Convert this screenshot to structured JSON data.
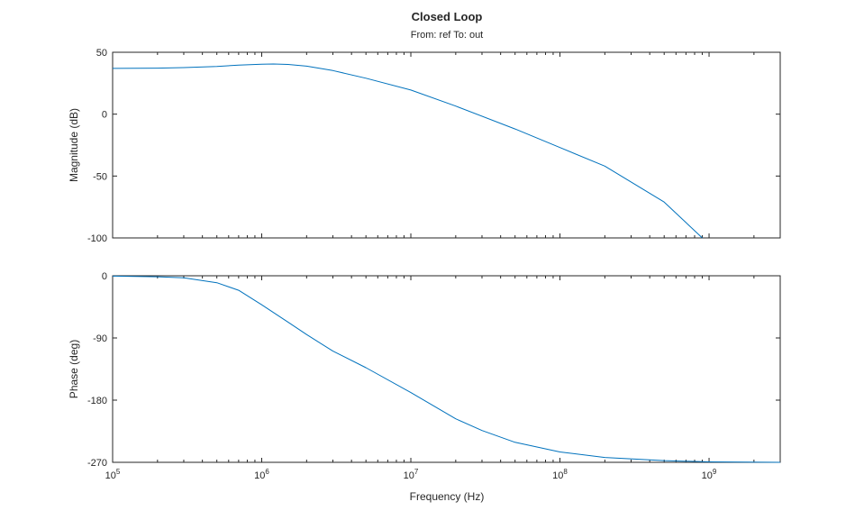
{
  "chart_data": {
    "type": "line",
    "title": "Closed Loop",
    "subtitle": "From: ref  To: out",
    "xlabel": "Frequency (Hz)",
    "xscale": "log",
    "xlim": [
      100000,
      3000000000
    ],
    "x_ticks": [
      {
        "value": 100000,
        "base": "10",
        "exp": "5"
      },
      {
        "value": 1000000,
        "base": "10",
        "exp": "6"
      },
      {
        "value": 10000000,
        "base": "10",
        "exp": "7"
      },
      {
        "value": 100000000,
        "base": "10",
        "exp": "8"
      },
      {
        "value": 1000000000,
        "base": "10",
        "exp": "9"
      }
    ],
    "line_color": "#0072BD",
    "grid": false,
    "subplots": [
      {
        "id": "magnitude",
        "ylabel": "Magnitude (dB)",
        "ylim": [
          -100,
          50
        ],
        "y_ticks": [
          {
            "value": 50,
            "label": "50"
          },
          {
            "value": 0,
            "label": "0"
          },
          {
            "value": -50,
            "label": "-50"
          },
          {
            "value": -100,
            "label": "-100"
          }
        ],
        "x": [
          100000,
          200000,
          300000,
          500000,
          700000,
          1000000,
          1200000,
          1500000,
          2000000,
          3000000,
          5000000,
          10000000,
          20000000,
          50000000,
          100000000,
          200000000,
          500000000,
          900000000
        ],
        "values": [
          37.0,
          37.2,
          37.6,
          38.6,
          39.6,
          40.4,
          40.5,
          40.2,
          38.8,
          35.2,
          29.0,
          19.5,
          6.5,
          -12,
          -27,
          -42,
          -71,
          -100
        ]
      },
      {
        "id": "phase",
        "ylabel": "Phase (deg)",
        "ylim": [
          -270,
          0
        ],
        "y_ticks": [
          {
            "value": 0,
            "label": "0"
          },
          {
            "value": -90,
            "label": "-90"
          },
          {
            "value": -180,
            "label": "-180"
          },
          {
            "value": -270,
            "label": "-270"
          }
        ],
        "x": [
          100000,
          200000,
          300000,
          500000,
          700000,
          1000000,
          1500000,
          2000000,
          3000000,
          5000000,
          10000000,
          20000000,
          30000000,
          50000000,
          100000000,
          200000000,
          500000000,
          1000000000,
          3000000000
        ],
        "values": [
          -0.5,
          -1.5,
          -3,
          -10,
          -21,
          -42,
          -67,
          -85,
          -109,
          -133,
          -169,
          -207,
          -224,
          -241,
          -255,
          -263,
          -267.5,
          -269.3,
          -270
        ]
      }
    ]
  }
}
